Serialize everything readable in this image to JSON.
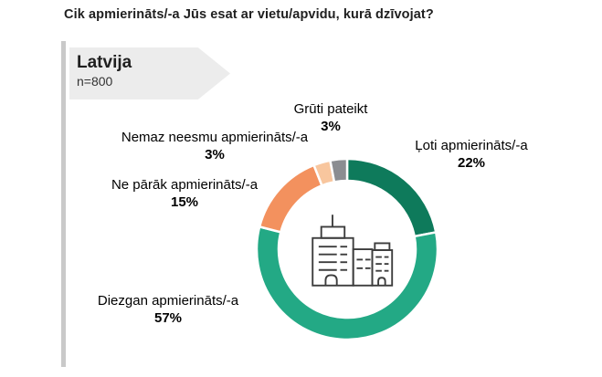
{
  "title": "Cik apmierināts/-a Jūs esat ar vietu/apvidu, kurā dzīvojat?",
  "banner": {
    "country": "Latvija",
    "sample": "n=800"
  },
  "chart_data": {
    "type": "pie",
    "subtype": "donut",
    "title": "Cik apmierināts/-a Jūs esat ar vietu/apvidu, kurā dzīvojat?",
    "categories": [
      "Ļoti apmierināts/-a",
      "Diezgan apmierināts/-a",
      "Ne pārāk apmierināts/-a",
      "Nemaz neesmu apmierināts/-a",
      "Grūti pateikt"
    ],
    "values": [
      22,
      57,
      15,
      3,
      3
    ],
    "value_labels": [
      "22%",
      "57%",
      "15%",
      "3%",
      "3%"
    ],
    "unit": "%",
    "colors": [
      "#0e7a5b",
      "#23a985",
      "#f3915e",
      "#f8c69e",
      "#8b8d91"
    ],
    "start_angle_deg": 0,
    "direction": "clockwise",
    "donut_hole_ratio": 0.76,
    "slice_gap_color": "#ffffff",
    "legend_position": "labels-around-donut",
    "center_icon": "city-buildings-icon",
    "sample_label": "n=800",
    "group_label": "Latvija"
  }
}
